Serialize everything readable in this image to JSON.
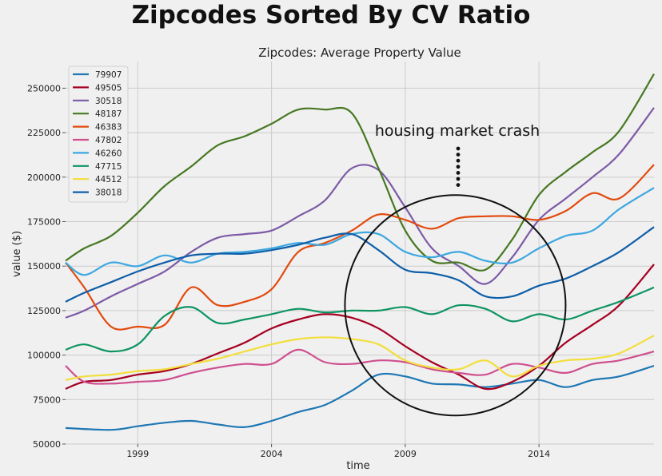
{
  "page": {
    "title": "Zipcodes Sorted By CV Ratio"
  },
  "chart_data": {
    "type": "line",
    "title": "Zipcodes: Average Property Value",
    "xlabel": "time",
    "ylabel": "value ($)",
    "xlim": [
      1996.3,
      2018.3
    ],
    "ylim": [
      50000,
      265000
    ],
    "x_ticks": [
      "1999",
      "2004",
      "2009",
      "2014"
    ],
    "y_ticks": [
      "50000",
      "75000",
      "100000",
      "125000",
      "150000",
      "175000",
      "200000",
      "225000",
      "250000"
    ],
    "grid": true,
    "legend_position": "top-left",
    "annotation": {
      "text": "housing market crash",
      "circle_center": [
        2010.9,
        128000
      ],
      "note": "circle highlighting the 2008-2013 housing market crash period"
    },
    "series": [
      {
        "name": "79907",
        "color": "#1f77b4",
        "points": [
          [
            1996.3,
            59000
          ],
          [
            1998,
            58000
          ],
          [
            1999,
            60000
          ],
          [
            2000,
            62000
          ],
          [
            2001,
            63000
          ],
          [
            2002,
            61000
          ],
          [
            2003,
            59500
          ],
          [
            2004,
            63000
          ],
          [
            2005,
            68000
          ],
          [
            2006,
            72000
          ],
          [
            2007,
            80000
          ],
          [
            2008,
            89000
          ],
          [
            2009,
            88000
          ],
          [
            2010,
            84000
          ],
          [
            2011,
            83500
          ],
          [
            2012,
            82000
          ],
          [
            2013,
            84000
          ],
          [
            2014,
            86000
          ],
          [
            2015,
            82000
          ],
          [
            2016,
            86000
          ],
          [
            2017,
            88000
          ],
          [
            2018.3,
            94000
          ]
        ]
      },
      {
        "name": "49505",
        "color": "#a50021",
        "points": [
          [
            1996.3,
            81000
          ],
          [
            1997,
            85000
          ],
          [
            1998,
            86000
          ],
          [
            1999,
            89000
          ],
          [
            2000,
            91000
          ],
          [
            2001,
            95000
          ],
          [
            2002,
            101000
          ],
          [
            2003,
            107000
          ],
          [
            2004,
            115000
          ],
          [
            2005,
            120000
          ],
          [
            2006,
            123000
          ],
          [
            2007,
            121000
          ],
          [
            2008,
            115000
          ],
          [
            2009,
            105000
          ],
          [
            2010,
            96000
          ],
          [
            2011,
            89000
          ],
          [
            2012,
            81000
          ],
          [
            2013,
            85000
          ],
          [
            2014,
            94000
          ],
          [
            2015,
            107000
          ],
          [
            2016,
            117000
          ],
          [
            2017,
            128000
          ],
          [
            2018.3,
            151000
          ]
        ]
      },
      {
        "name": "30518",
        "color": "#7c5aa6",
        "points": [
          [
            1996.3,
            121000
          ],
          [
            1997,
            125000
          ],
          [
            1998,
            133000
          ],
          [
            1999,
            140000
          ],
          [
            2000,
            147000
          ],
          [
            2001,
            158000
          ],
          [
            2002,
            166000
          ],
          [
            2003,
            168000
          ],
          [
            2004,
            170000
          ],
          [
            2005,
            178000
          ],
          [
            2006,
            187000
          ],
          [
            2007,
            205000
          ],
          [
            2008,
            204000
          ],
          [
            2009,
            183000
          ],
          [
            2010,
            160000
          ],
          [
            2011,
            150000
          ],
          [
            2012,
            140000
          ],
          [
            2013,
            155000
          ],
          [
            2014,
            176000
          ],
          [
            2015,
            188000
          ],
          [
            2016,
            200000
          ],
          [
            2017,
            213000
          ],
          [
            2018.3,
            239000
          ]
        ]
      },
      {
        "name": "48187",
        "color": "#467821",
        "points": [
          [
            1996.3,
            153000
          ],
          [
            1997,
            160000
          ],
          [
            1998,
            167000
          ],
          [
            1999,
            180000
          ],
          [
            2000,
            195000
          ],
          [
            2001,
            206000
          ],
          [
            2002,
            218000
          ],
          [
            2003,
            223000
          ],
          [
            2004,
            230000
          ],
          [
            2005,
            238000
          ],
          [
            2006,
            238000
          ],
          [
            2007,
            236000
          ],
          [
            2008,
            205000
          ],
          [
            2009,
            170000
          ],
          [
            2010,
            153000
          ],
          [
            2011,
            152000
          ],
          [
            2012,
            148000
          ],
          [
            2013,
            165000
          ],
          [
            2014,
            190000
          ],
          [
            2015,
            203000
          ],
          [
            2016,
            214000
          ],
          [
            2017,
            226000
          ],
          [
            2018.3,
            258000
          ]
        ]
      },
      {
        "name": "46383",
        "color": "#e24a0e",
        "points": [
          [
            1996.3,
            152000
          ],
          [
            1997,
            138000
          ],
          [
            1998,
            116000
          ],
          [
            1999,
            116000
          ],
          [
            2000,
            117000
          ],
          [
            2001,
            138000
          ],
          [
            2002,
            128000
          ],
          [
            2003,
            130000
          ],
          [
            2004,
            137000
          ],
          [
            2005,
            158000
          ],
          [
            2006,
            163000
          ],
          [
            2007,
            170000
          ],
          [
            2008,
            179000
          ],
          [
            2009,
            176000
          ],
          [
            2010,
            171000
          ],
          [
            2011,
            177000
          ],
          [
            2012,
            178000
          ],
          [
            2013,
            178000
          ],
          [
            2014,
            176000
          ],
          [
            2015,
            181000
          ],
          [
            2016,
            191000
          ],
          [
            2017,
            188000
          ],
          [
            2018.3,
            207000
          ]
        ]
      },
      {
        "name": "47802",
        "color": "#cf4f8f",
        "points": [
          [
            1996.3,
            94000
          ],
          [
            1997,
            85000
          ],
          [
            1998,
            84000
          ],
          [
            1999,
            85000
          ],
          [
            2000,
            86000
          ],
          [
            2001,
            90000
          ],
          [
            2002,
            93000
          ],
          [
            2003,
            95000
          ],
          [
            2004,
            95000
          ],
          [
            2005,
            103000
          ],
          [
            2006,
            96000
          ],
          [
            2007,
            95000
          ],
          [
            2008,
            97000
          ],
          [
            2009,
            96000
          ],
          [
            2010,
            92000
          ],
          [
            2011,
            90000
          ],
          [
            2012,
            89000
          ],
          [
            2013,
            95000
          ],
          [
            2014,
            93000
          ],
          [
            2015,
            90000
          ],
          [
            2016,
            95000
          ],
          [
            2017,
            97000
          ],
          [
            2018.3,
            102000
          ]
        ]
      },
      {
        "name": "46260",
        "color": "#3ca7e0",
        "points": [
          [
            1996.3,
            152000
          ],
          [
            1997,
            145000
          ],
          [
            1998,
            152000
          ],
          [
            1999,
            150000
          ],
          [
            2000,
            156000
          ],
          [
            2001,
            152000
          ],
          [
            2002,
            157000
          ],
          [
            2003,
            158000
          ],
          [
            2004,
            160000
          ],
          [
            2005,
            163000
          ],
          [
            2006,
            162000
          ],
          [
            2007,
            168000
          ],
          [
            2008,
            168000
          ],
          [
            2009,
            158000
          ],
          [
            2010,
            155000
          ],
          [
            2011,
            158000
          ],
          [
            2012,
            153000
          ],
          [
            2013,
            152000
          ],
          [
            2014,
            160000
          ],
          [
            2015,
            167000
          ],
          [
            2016,
            170000
          ],
          [
            2017,
            182000
          ],
          [
            2018.3,
            194000
          ]
        ]
      },
      {
        "name": "47715",
        "color": "#0e9462",
        "points": [
          [
            1996.3,
            103000
          ],
          [
            1997,
            106000
          ],
          [
            1998,
            102000
          ],
          [
            1999,
            106000
          ],
          [
            2000,
            122000
          ],
          [
            2001,
            127000
          ],
          [
            2002,
            118000
          ],
          [
            2003,
            120000
          ],
          [
            2004,
            123000
          ],
          [
            2005,
            126000
          ],
          [
            2006,
            124000
          ],
          [
            2007,
            125000
          ],
          [
            2008,
            125000
          ],
          [
            2009,
            127000
          ],
          [
            2010,
            123000
          ],
          [
            2011,
            128000
          ],
          [
            2012,
            126000
          ],
          [
            2013,
            119000
          ],
          [
            2014,
            123000
          ],
          [
            2015,
            120000
          ],
          [
            2016,
            125000
          ],
          [
            2017,
            130000
          ],
          [
            2018.3,
            138000
          ]
        ]
      },
      {
        "name": "44512",
        "color": "#f2de3c",
        "points": [
          [
            1996.3,
            86000
          ],
          [
            1997,
            88000
          ],
          [
            1998,
            89000
          ],
          [
            1999,
            91000
          ],
          [
            2000,
            92000
          ],
          [
            2001,
            95000
          ],
          [
            2002,
            98000
          ],
          [
            2003,
            102000
          ],
          [
            2004,
            106000
          ],
          [
            2005,
            109000
          ],
          [
            2006,
            110000
          ],
          [
            2007,
            109000
          ],
          [
            2008,
            106000
          ],
          [
            2009,
            97000
          ],
          [
            2010,
            93000
          ],
          [
            2011,
            92000
          ],
          [
            2012,
            97000
          ],
          [
            2013,
            88000
          ],
          [
            2014,
            94000
          ],
          [
            2015,
            97000
          ],
          [
            2016,
            98000
          ],
          [
            2017,
            101000
          ],
          [
            2018.3,
            111000
          ]
        ]
      },
      {
        "name": "38018",
        "color": "#0e5ea8",
        "points": [
          [
            1996.3,
            130000
          ],
          [
            1997,
            135000
          ],
          [
            1998,
            141000
          ],
          [
            1999,
            147000
          ],
          [
            2000,
            152000
          ],
          [
            2001,
            156000
          ],
          [
            2002,
            157000
          ],
          [
            2003,
            157000
          ],
          [
            2004,
            159000
          ],
          [
            2005,
            162000
          ],
          [
            2006,
            166000
          ],
          [
            2007,
            168000
          ],
          [
            2008,
            159000
          ],
          [
            2009,
            148000
          ],
          [
            2010,
            146000
          ],
          [
            2011,
            142000
          ],
          [
            2012,
            133000
          ],
          [
            2013,
            133000
          ],
          [
            2014,
            139000
          ],
          [
            2015,
            143000
          ],
          [
            2016,
            150000
          ],
          [
            2017,
            158000
          ],
          [
            2018.3,
            172000
          ]
        ]
      }
    ]
  }
}
